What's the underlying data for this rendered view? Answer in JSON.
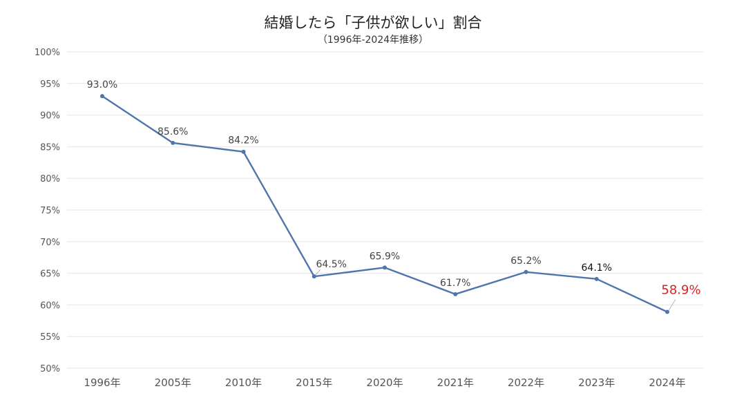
{
  "chart_data": {
    "type": "line",
    "title": "結婚したら「子供が欲しい」割合",
    "subtitle": "（1996年-2024年推移）",
    "categories": [
      "1996年",
      "2005年",
      "2010年",
      "2015年",
      "2020年",
      "2021年",
      "2022年",
      "2023年",
      "2024年"
    ],
    "series": [
      {
        "values": [
          93.0,
          85.6,
          84.2,
          64.5,
          65.9,
          61.7,
          65.2,
          64.1,
          58.9
        ],
        "data_labels": [
          "93.0%",
          "85.6%",
          "84.2%",
          "64.5%",
          "65.9%",
          "61.7%",
          "65.2%",
          "64.1%",
          "58.9%"
        ],
        "color": "#4f75ad"
      }
    ],
    "ylim": [
      50,
      100
    ],
    "ytick_labels": [
      "50%",
      "55%",
      "60%",
      "65%",
      "70%",
      "75%",
      "80%",
      "85%",
      "90%",
      "95%",
      "100%"
    ],
    "grid": true,
    "highlight_index": 8,
    "highlight_color": "#d62222",
    "xlabel": "",
    "ylabel": ""
  }
}
